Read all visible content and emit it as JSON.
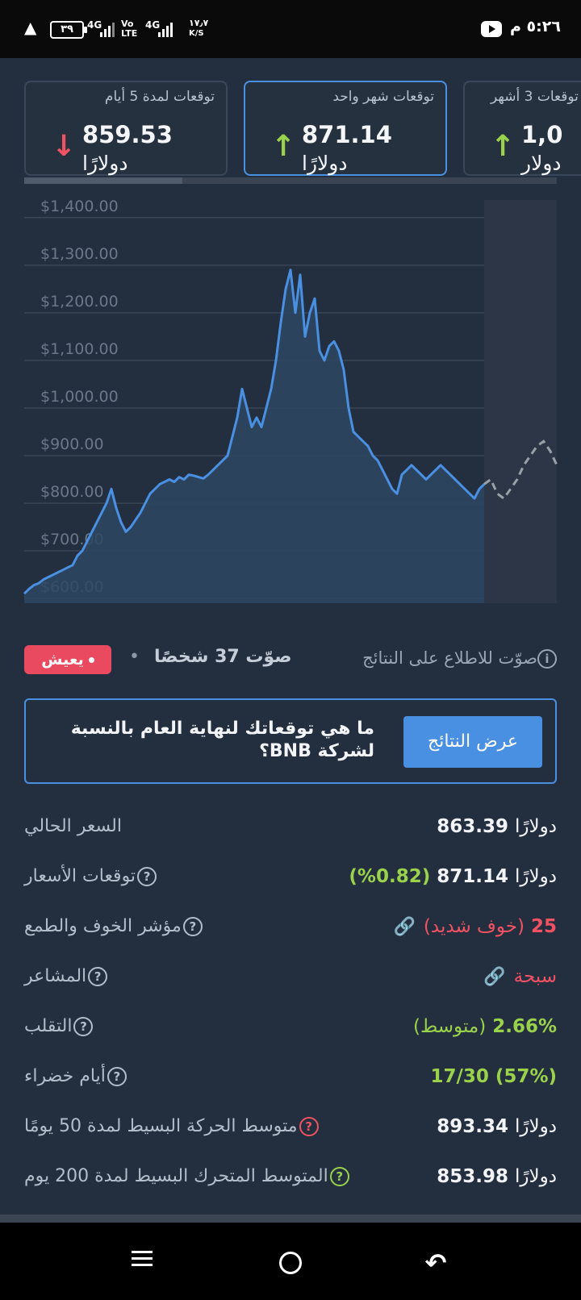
{
  "status_bar": {
    "time": "٥:٢٦ م",
    "battery": "٣٩",
    "net_speed_value": "١٧٫٧",
    "net_speed_unit": "K/S",
    "net1": "4G",
    "volte": "Vo LTE",
    "net2": "4G"
  },
  "prediction_cards": [
    {
      "label": "توقعات لمدة 5 أيام",
      "value": "859.53",
      "unit": "دولارًا",
      "direction": "down"
    },
    {
      "label": "توقعات شهر واحد",
      "value": "871.14",
      "unit": "دولارًا",
      "direction": "up"
    },
    {
      "label": "توقعات 3 أشهر",
      "value": "1,0",
      "unit": "دولار",
      "direction": "up"
    }
  ],
  "chart_data": {
    "type": "line",
    "y_tick_labels": [
      "$1,400.00",
      "$1,300.00",
      "$1,200.00",
      "$1,100.00",
      "$1,000.00",
      "$900.00",
      "$800.00",
      "$700.00",
      "$600.00"
    ],
    "ylim": [
      590,
      1420
    ],
    "series": [
      {
        "style": "solid",
        "color": "#4a90e2",
        "values": [
          610,
          620,
          628,
          632,
          640,
          645,
          650,
          655,
          660,
          665,
          670,
          690,
          700,
          720,
          740,
          760,
          780,
          800,
          830,
          790,
          760,
          740,
          750,
          765,
          780,
          800,
          820,
          830,
          840,
          845,
          850,
          845,
          855,
          850,
          860,
          858,
          855,
          852,
          860,
          870,
          880,
          890,
          900,
          940,
          980,
          1040,
          1000,
          960,
          980,
          960,
          1000,
          1040,
          1100,
          1180,
          1250,
          1290,
          1200,
          1280,
          1150,
          1200,
          1230,
          1120,
          1100,
          1130,
          1140,
          1120,
          1080,
          1000,
          950,
          940,
          930,
          920,
          900,
          890,
          870,
          850,
          830,
          820,
          860,
          870,
          880,
          870,
          860,
          850,
          860,
          870,
          880,
          870,
          860,
          850,
          840,
          830,
          820,
          810,
          830,
          840
        ]
      },
      {
        "style": "dashed",
        "color": "#9aa0a8",
        "values": [
          840,
          850,
          820,
          810,
          830,
          850,
          880,
          900,
          920,
          930,
          910,
          880
        ]
      }
    ]
  },
  "vote": {
    "badge": "يعيش",
    "count": "صوّت 37 شخصًا",
    "info": "صوّت للاطلاع على النتائج"
  },
  "question": {
    "text": "ما هي توقعاتك لنهاية العام بالنسبة لشركة BNB؟",
    "button": "عرض النتائج"
  },
  "stats": [
    {
      "label": "السعر الحالي",
      "value": "863.39",
      "unit": "دولارًا"
    },
    {
      "label": "توقعات الأسعار",
      "value": "871.14",
      "unit": "دولارًا",
      "extra": "(0.82%)"
    },
    {
      "label": "مؤشر الخوف والطمع",
      "value": "25",
      "extra": "(خوف شديد)"
    },
    {
      "label": "المشاعر",
      "value": "سبحة"
    },
    {
      "label": "التقلب",
      "value": "2.66%",
      "extra": "(متوسط)"
    },
    {
      "label": "أيام خضراء",
      "value": "17/30 (57%)"
    },
    {
      "label": "متوسط الحركة البسيط لمدة 50 يومًا",
      "value": "893.34",
      "unit": "دولارًا"
    },
    {
      "label": "المتوسط المتحرك البسيط لمدة 200 يوم",
      "value": "853.98",
      "unit": "دولارًا"
    }
  ]
}
